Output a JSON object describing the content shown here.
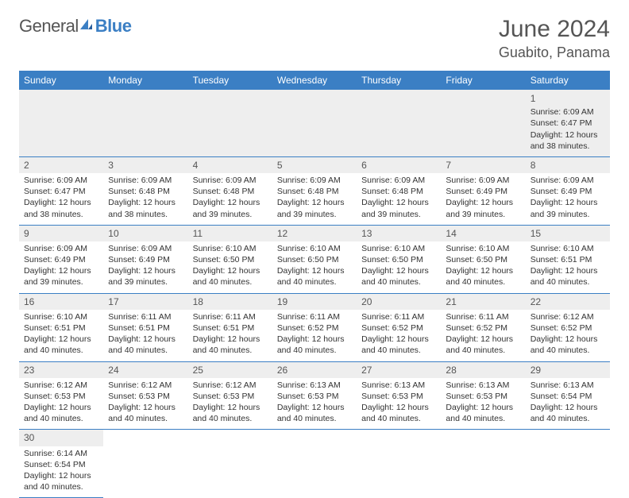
{
  "brand": {
    "part1": "General",
    "part2": "Blue"
  },
  "header": {
    "title": "June 2024",
    "location": "Guabito, Panama"
  },
  "colors": {
    "header_bg": "#3b7fc4",
    "header_text": "#ffffff",
    "daynum_bg": "#eeeeee",
    "border": "#3b7fc4",
    "text": "#333333",
    "title": "#555555"
  },
  "weekdays": [
    "Sunday",
    "Monday",
    "Tuesday",
    "Wednesday",
    "Thursday",
    "Friday",
    "Saturday"
  ],
  "weeks": [
    [
      null,
      null,
      null,
      null,
      null,
      null,
      {
        "n": "1",
        "sr": "Sunrise: 6:09 AM",
        "ss": "Sunset: 6:47 PM",
        "dl": "Daylight: 12 hours and 38 minutes."
      }
    ],
    [
      {
        "n": "2",
        "sr": "Sunrise: 6:09 AM",
        "ss": "Sunset: 6:47 PM",
        "dl": "Daylight: 12 hours and 38 minutes."
      },
      {
        "n": "3",
        "sr": "Sunrise: 6:09 AM",
        "ss": "Sunset: 6:48 PM",
        "dl": "Daylight: 12 hours and 38 minutes."
      },
      {
        "n": "4",
        "sr": "Sunrise: 6:09 AM",
        "ss": "Sunset: 6:48 PM",
        "dl": "Daylight: 12 hours and 39 minutes."
      },
      {
        "n": "5",
        "sr": "Sunrise: 6:09 AM",
        "ss": "Sunset: 6:48 PM",
        "dl": "Daylight: 12 hours and 39 minutes."
      },
      {
        "n": "6",
        "sr": "Sunrise: 6:09 AM",
        "ss": "Sunset: 6:48 PM",
        "dl": "Daylight: 12 hours and 39 minutes."
      },
      {
        "n": "7",
        "sr": "Sunrise: 6:09 AM",
        "ss": "Sunset: 6:49 PM",
        "dl": "Daylight: 12 hours and 39 minutes."
      },
      {
        "n": "8",
        "sr": "Sunrise: 6:09 AM",
        "ss": "Sunset: 6:49 PM",
        "dl": "Daylight: 12 hours and 39 minutes."
      }
    ],
    [
      {
        "n": "9",
        "sr": "Sunrise: 6:09 AM",
        "ss": "Sunset: 6:49 PM",
        "dl": "Daylight: 12 hours and 39 minutes."
      },
      {
        "n": "10",
        "sr": "Sunrise: 6:09 AM",
        "ss": "Sunset: 6:49 PM",
        "dl": "Daylight: 12 hours and 39 minutes."
      },
      {
        "n": "11",
        "sr": "Sunrise: 6:10 AM",
        "ss": "Sunset: 6:50 PM",
        "dl": "Daylight: 12 hours and 40 minutes."
      },
      {
        "n": "12",
        "sr": "Sunrise: 6:10 AM",
        "ss": "Sunset: 6:50 PM",
        "dl": "Daylight: 12 hours and 40 minutes."
      },
      {
        "n": "13",
        "sr": "Sunrise: 6:10 AM",
        "ss": "Sunset: 6:50 PM",
        "dl": "Daylight: 12 hours and 40 minutes."
      },
      {
        "n": "14",
        "sr": "Sunrise: 6:10 AM",
        "ss": "Sunset: 6:50 PM",
        "dl": "Daylight: 12 hours and 40 minutes."
      },
      {
        "n": "15",
        "sr": "Sunrise: 6:10 AM",
        "ss": "Sunset: 6:51 PM",
        "dl": "Daylight: 12 hours and 40 minutes."
      }
    ],
    [
      {
        "n": "16",
        "sr": "Sunrise: 6:10 AM",
        "ss": "Sunset: 6:51 PM",
        "dl": "Daylight: 12 hours and 40 minutes."
      },
      {
        "n": "17",
        "sr": "Sunrise: 6:11 AM",
        "ss": "Sunset: 6:51 PM",
        "dl": "Daylight: 12 hours and 40 minutes."
      },
      {
        "n": "18",
        "sr": "Sunrise: 6:11 AM",
        "ss": "Sunset: 6:51 PM",
        "dl": "Daylight: 12 hours and 40 minutes."
      },
      {
        "n": "19",
        "sr": "Sunrise: 6:11 AM",
        "ss": "Sunset: 6:52 PM",
        "dl": "Daylight: 12 hours and 40 minutes."
      },
      {
        "n": "20",
        "sr": "Sunrise: 6:11 AM",
        "ss": "Sunset: 6:52 PM",
        "dl": "Daylight: 12 hours and 40 minutes."
      },
      {
        "n": "21",
        "sr": "Sunrise: 6:11 AM",
        "ss": "Sunset: 6:52 PM",
        "dl": "Daylight: 12 hours and 40 minutes."
      },
      {
        "n": "22",
        "sr": "Sunrise: 6:12 AM",
        "ss": "Sunset: 6:52 PM",
        "dl": "Daylight: 12 hours and 40 minutes."
      }
    ],
    [
      {
        "n": "23",
        "sr": "Sunrise: 6:12 AM",
        "ss": "Sunset: 6:53 PM",
        "dl": "Daylight: 12 hours and 40 minutes."
      },
      {
        "n": "24",
        "sr": "Sunrise: 6:12 AM",
        "ss": "Sunset: 6:53 PM",
        "dl": "Daylight: 12 hours and 40 minutes."
      },
      {
        "n": "25",
        "sr": "Sunrise: 6:12 AM",
        "ss": "Sunset: 6:53 PM",
        "dl": "Daylight: 12 hours and 40 minutes."
      },
      {
        "n": "26",
        "sr": "Sunrise: 6:13 AM",
        "ss": "Sunset: 6:53 PM",
        "dl": "Daylight: 12 hours and 40 minutes."
      },
      {
        "n": "27",
        "sr": "Sunrise: 6:13 AM",
        "ss": "Sunset: 6:53 PM",
        "dl": "Daylight: 12 hours and 40 minutes."
      },
      {
        "n": "28",
        "sr": "Sunrise: 6:13 AM",
        "ss": "Sunset: 6:53 PM",
        "dl": "Daylight: 12 hours and 40 minutes."
      },
      {
        "n": "29",
        "sr": "Sunrise: 6:13 AM",
        "ss": "Sunset: 6:54 PM",
        "dl": "Daylight: 12 hours and 40 minutes."
      }
    ],
    [
      {
        "n": "30",
        "sr": "Sunrise: 6:14 AM",
        "ss": "Sunset: 6:54 PM",
        "dl": "Daylight: 12 hours and 40 minutes."
      },
      null,
      null,
      null,
      null,
      null,
      null
    ]
  ]
}
